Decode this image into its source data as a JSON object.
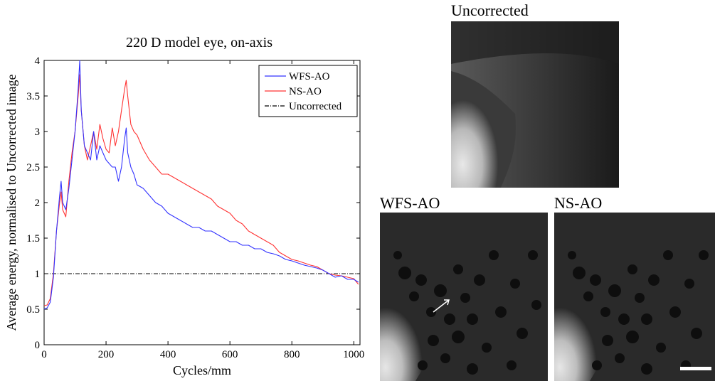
{
  "chart_data": {
    "type": "line",
    "title": "220 D model eye, on-axis",
    "xlabel": "Cycles/mm",
    "ylabel": "Average energy, normalised to Uncorrected image",
    "xlim": [
      0,
      1020
    ],
    "ylim": [
      0,
      4
    ],
    "xticks": [
      0,
      200,
      400,
      600,
      800,
      1000
    ],
    "yticks": [
      0,
      0.5,
      1,
      1.5,
      2,
      2.5,
      3,
      3.5,
      4
    ],
    "xtick_labels": [
      "0",
      "200",
      "400",
      "600",
      "800",
      "1000"
    ],
    "ytick_labels": [
      "0",
      "0.5",
      "1",
      "1.5",
      "2",
      "2.5",
      "3",
      "3.5",
      "4"
    ],
    "grid": false,
    "legend_position": "top-right",
    "series": [
      {
        "name": "WFS-AO",
        "color": "#3333ff",
        "style": "solid",
        "x": [
          0,
          10,
          20,
          30,
          40,
          50,
          55,
          60,
          70,
          80,
          90,
          100,
          110,
          115,
          120,
          130,
          140,
          150,
          160,
          170,
          180,
          190,
          200,
          210,
          220,
          230,
          240,
          250,
          260,
          265,
          270,
          280,
          290,
          300,
          320,
          340,
          360,
          380,
          400,
          420,
          440,
          460,
          480,
          500,
          520,
          540,
          560,
          580,
          600,
          620,
          640,
          660,
          680,
          700,
          720,
          740,
          760,
          780,
          800,
          820,
          840,
          860,
          880,
          900,
          920,
          940,
          960,
          980,
          1000,
          1015
        ],
        "y": [
          0.5,
          0.52,
          0.6,
          0.95,
          1.6,
          2.1,
          2.3,
          2.0,
          1.9,
          2.2,
          2.6,
          3.0,
          3.6,
          4.0,
          3.3,
          2.8,
          2.7,
          2.6,
          3.0,
          2.6,
          2.8,
          2.7,
          2.6,
          2.55,
          2.5,
          2.5,
          2.3,
          2.5,
          2.9,
          3.05,
          2.7,
          2.5,
          2.4,
          2.25,
          2.2,
          2.1,
          2.0,
          1.95,
          1.85,
          1.8,
          1.75,
          1.7,
          1.65,
          1.65,
          1.6,
          1.6,
          1.55,
          1.5,
          1.45,
          1.45,
          1.4,
          1.4,
          1.35,
          1.35,
          1.3,
          1.28,
          1.25,
          1.2,
          1.18,
          1.15,
          1.12,
          1.1,
          1.08,
          1.05,
          1.0,
          0.95,
          0.97,
          0.92,
          0.92,
          0.88
        ]
      },
      {
        "name": "NS-AO",
        "color": "#ff3333",
        "style": "solid",
        "x": [
          0,
          10,
          20,
          30,
          40,
          50,
          55,
          60,
          70,
          80,
          90,
          100,
          110,
          115,
          120,
          130,
          140,
          150,
          160,
          170,
          180,
          190,
          200,
          210,
          220,
          230,
          240,
          250,
          260,
          265,
          270,
          280,
          290,
          300,
          320,
          340,
          360,
          380,
          400,
          420,
          440,
          460,
          480,
          500,
          520,
          540,
          560,
          580,
          600,
          620,
          640,
          660,
          680,
          700,
          720,
          740,
          760,
          780,
          800,
          820,
          840,
          860,
          880,
          900,
          920,
          940,
          960,
          980,
          1000,
          1015
        ],
        "y": [
          0.55,
          0.56,
          0.65,
          1.0,
          1.6,
          2.0,
          2.15,
          1.9,
          1.8,
          2.3,
          2.7,
          3.0,
          3.5,
          3.8,
          3.3,
          2.8,
          2.6,
          2.8,
          3.0,
          2.75,
          3.1,
          2.9,
          2.75,
          2.7,
          3.05,
          2.8,
          3.0,
          3.3,
          3.6,
          3.72,
          3.5,
          3.1,
          3.0,
          2.95,
          2.75,
          2.6,
          2.5,
          2.4,
          2.4,
          2.35,
          2.3,
          2.25,
          2.2,
          2.15,
          2.1,
          2.05,
          1.95,
          1.9,
          1.85,
          1.75,
          1.7,
          1.6,
          1.55,
          1.5,
          1.45,
          1.4,
          1.3,
          1.25,
          1.2,
          1.18,
          1.15,
          1.12,
          1.1,
          1.05,
          1.0,
          0.98,
          0.97,
          0.95,
          0.93,
          0.85
        ]
      },
      {
        "name": "Uncorrected",
        "color": "#000000",
        "style": "dash-dot",
        "x": [
          0,
          1015
        ],
        "y": [
          1,
          1
        ]
      }
    ]
  },
  "images": {
    "uncorrected_label": "Uncorrected",
    "wfs_label": "WFS-AO",
    "ns_label": "NS-AO"
  }
}
